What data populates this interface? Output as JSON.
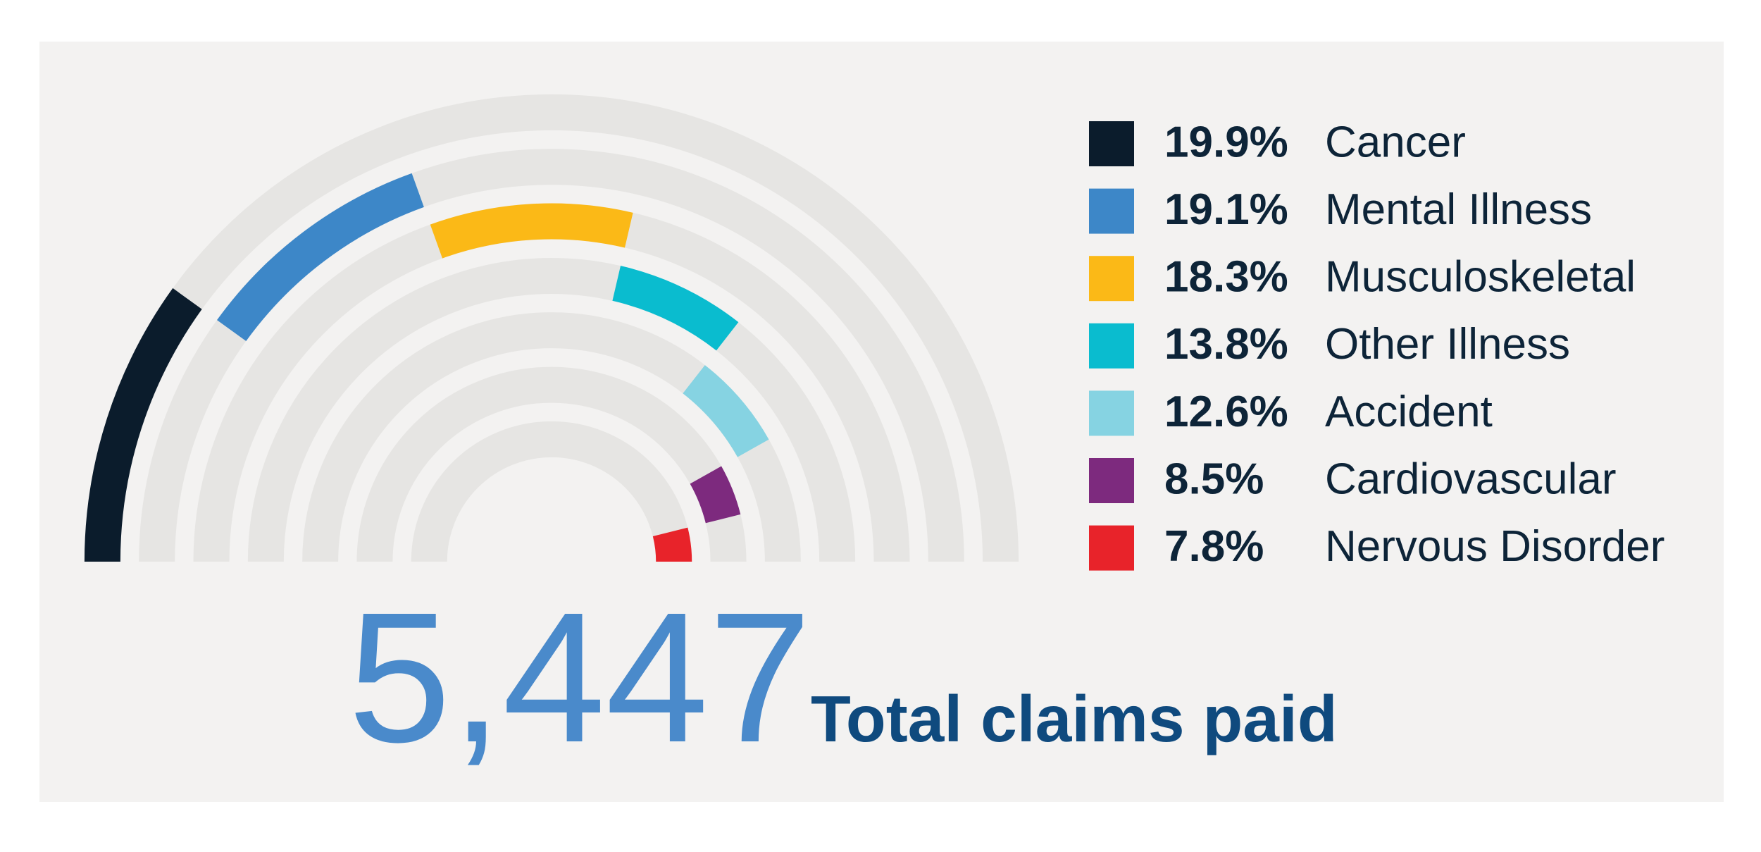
{
  "chart_data": {
    "type": "radial",
    "categories": [
      "Cancer",
      "Mental Illness",
      "Musculoskeletal",
      "Other Illness",
      "Accident",
      "Cardiovascular",
      "Nervous Disorder"
    ],
    "values": [
      19.9,
      19.1,
      18.3,
      13.8,
      12.6,
      8.5,
      7.8
    ],
    "value_labels": [
      "19.9%",
      "19.1%",
      "18.3%",
      "13.8%",
      "12.6%",
      "8.5%",
      "7.8%"
    ],
    "colors": [
      "#0b1c2c",
      "#3d87c8",
      "#fbb917",
      "#0abccf",
      "#86d3e2",
      "#7d2a7e",
      "#e8232a"
    ],
    "track_color": "#e6e5e3",
    "total": {
      "value": 5447,
      "label": "5,447"
    },
    "total_caption": "Total claims paid"
  }
}
